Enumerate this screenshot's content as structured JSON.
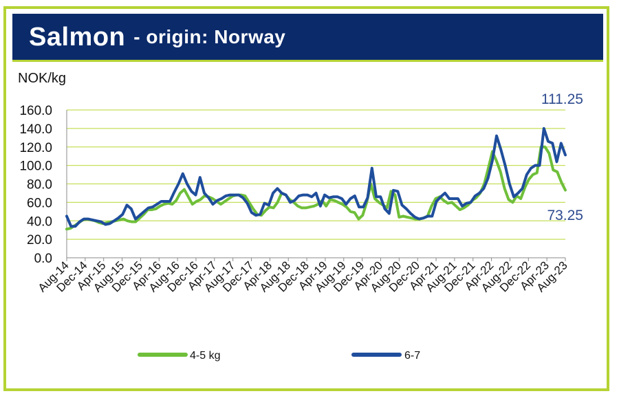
{
  "title": {
    "main": "Salmon",
    "sub": "- origin: Norway"
  },
  "colors": {
    "series_4_5": "#6fbf3a",
    "series_6_7": "#1f4e9c",
    "gridline": "#c5df5a",
    "frame": "#b5d334",
    "title_bg": "#0b2a6a"
  },
  "chart_data": {
    "type": "line",
    "ylabel": "NOK/kg",
    "ylim": [
      0,
      160
    ],
    "yticks": [
      "0.0",
      "20.0",
      "40.0",
      "60.0",
      "80.0",
      "100.0",
      "120.0",
      "140.0",
      "160.0"
    ],
    "xticks": [
      "Aug-14",
      "Dec-14",
      "Apr-15",
      "Aug-15",
      "Dec-15",
      "Apr-16",
      "Aug-16",
      "Dec-16",
      "Apr-17",
      "Aug-17",
      "Dec-17",
      "Apr-18",
      "Aug-18",
      "Dec-18",
      "Apr-19",
      "Aug-19",
      "Dec-19",
      "Apr-20",
      "Aug-20",
      "Dec-20",
      "Apr-21",
      "Aug-21",
      "Dec-21",
      "Apr-22",
      "Aug-22",
      "Dec-22",
      "Apr-23",
      "Aug-23"
    ],
    "grid": true,
    "legend_position": "bottom",
    "annotations": [
      "111.25",
      "73.25"
    ],
    "series": [
      {
        "name": "4-5 kg",
        "color": "#6fbf3a",
        "points": [
          [
            0,
            31
          ],
          [
            1,
            32
          ],
          [
            2,
            35
          ],
          [
            3,
            38
          ],
          [
            4,
            41
          ],
          [
            5,
            42
          ],
          [
            6,
            41
          ],
          [
            7,
            40
          ],
          [
            8,
            38
          ],
          [
            9,
            37
          ],
          [
            10,
            38
          ],
          [
            11,
            39
          ],
          [
            12,
            40
          ],
          [
            13,
            41
          ],
          [
            14,
            42
          ],
          [
            15,
            40
          ],
          [
            16,
            39
          ],
          [
            17,
            39
          ],
          [
            18,
            43
          ],
          [
            19,
            47
          ],
          [
            20,
            52
          ],
          [
            21,
            52
          ],
          [
            22,
            53
          ],
          [
            23,
            56
          ],
          [
            24,
            58
          ],
          [
            25,
            59
          ],
          [
            26,
            58
          ],
          [
            27,
            62
          ],
          [
            28,
            70
          ],
          [
            29,
            74
          ],
          [
            30,
            66
          ],
          [
            31,
            58
          ],
          [
            32,
            61
          ],
          [
            33,
            63
          ],
          [
            34,
            67
          ],
          [
            35,
            66
          ],
          [
            36,
            64
          ],
          [
            37,
            61
          ],
          [
            38,
            58
          ],
          [
            39,
            61
          ],
          [
            40,
            64
          ],
          [
            41,
            67
          ],
          [
            42,
            68
          ],
          [
            43,
            68
          ],
          [
            44,
            67
          ],
          [
            45,
            60
          ],
          [
            46,
            53
          ],
          [
            47,
            47
          ],
          [
            48,
            46
          ],
          [
            49,
            51
          ],
          [
            50,
            55
          ],
          [
            51,
            54
          ],
          [
            52,
            60
          ],
          [
            53,
            70
          ],
          [
            54,
            68
          ],
          [
            55,
            63
          ],
          [
            56,
            60
          ],
          [
            57,
            56
          ],
          [
            58,
            54
          ],
          [
            59,
            54
          ],
          [
            60,
            55
          ],
          [
            61,
            56
          ],
          [
            62,
            58
          ],
          [
            63,
            62
          ],
          [
            64,
            56
          ],
          [
            65,
            63
          ],
          [
            66,
            62
          ],
          [
            67,
            60
          ],
          [
            68,
            58
          ],
          [
            69,
            55
          ],
          [
            70,
            50
          ],
          [
            71,
            49
          ],
          [
            72,
            42
          ],
          [
            73,
            46
          ],
          [
            74,
            60
          ],
          [
            75,
            80
          ],
          [
            76,
            64
          ],
          [
            77,
            60
          ],
          [
            78,
            57
          ],
          [
            79,
            54
          ],
          [
            80,
            72
          ],
          [
            81,
            68
          ],
          [
            82,
            44
          ],
          [
            83,
            45
          ],
          [
            84,
            44
          ],
          [
            85,
            43
          ],
          [
            86,
            42
          ],
          [
            87,
            42
          ],
          [
            88,
            43
          ],
          [
            89,
            45
          ],
          [
            90,
            56
          ],
          [
            91,
            64
          ],
          [
            92,
            66
          ],
          [
            93,
            62
          ],
          [
            94,
            59
          ],
          [
            95,
            60
          ],
          [
            96,
            56
          ],
          [
            97,
            52
          ],
          [
            98,
            54
          ],
          [
            99,
            57
          ],
          [
            100,
            62
          ],
          [
            101,
            65
          ],
          [
            102,
            70
          ],
          [
            103,
            80
          ],
          [
            104,
            97
          ],
          [
            105,
            115
          ],
          [
            106,
            105
          ],
          [
            107,
            93
          ],
          [
            108,
            75
          ],
          [
            109,
            63
          ],
          [
            110,
            60
          ],
          [
            111,
            67
          ],
          [
            112,
            64
          ],
          [
            113,
            76
          ],
          [
            114,
            85
          ],
          [
            115,
            90
          ],
          [
            116,
            92
          ],
          [
            117,
            120
          ],
          [
            118,
            120
          ],
          [
            119,
            113
          ],
          [
            120,
            95
          ],
          [
            121,
            93
          ],
          [
            122,
            82
          ],
          [
            123,
            73.25
          ]
        ]
      },
      {
        "name": "6-7",
        "color": "#1f4e9c",
        "points": [
          [
            0,
            45
          ],
          [
            1,
            34
          ],
          [
            2,
            34
          ],
          [
            3,
            39
          ],
          [
            4,
            42
          ],
          [
            5,
            42
          ],
          [
            6,
            41
          ],
          [
            7,
            40
          ],
          [
            8,
            39
          ],
          [
            9,
            36
          ],
          [
            10,
            37
          ],
          [
            11,
            40
          ],
          [
            12,
            43
          ],
          [
            13,
            47
          ],
          [
            14,
            57
          ],
          [
            15,
            53
          ],
          [
            16,
            42
          ],
          [
            17,
            46
          ],
          [
            18,
            50
          ],
          [
            19,
            54
          ],
          [
            20,
            55
          ],
          [
            21,
            58
          ],
          [
            22,
            61
          ],
          [
            23,
            61
          ],
          [
            24,
            61
          ],
          [
            25,
            71
          ],
          [
            26,
            80
          ],
          [
            27,
            91
          ],
          [
            28,
            80
          ],
          [
            29,
            72
          ],
          [
            30,
            68
          ],
          [
            31,
            87
          ],
          [
            32,
            70
          ],
          [
            33,
            65
          ],
          [
            34,
            58
          ],
          [
            35,
            62
          ],
          [
            36,
            64
          ],
          [
            37,
            67
          ],
          [
            38,
            68
          ],
          [
            39,
            68
          ],
          [
            40,
            68
          ],
          [
            41,
            65
          ],
          [
            42,
            59
          ],
          [
            43,
            49
          ],
          [
            44,
            46
          ],
          [
            45,
            47
          ],
          [
            46,
            59
          ],
          [
            47,
            57
          ],
          [
            48,
            70
          ],
          [
            49,
            75
          ],
          [
            50,
            70
          ],
          [
            51,
            68
          ],
          [
            52,
            60
          ],
          [
            53,
            62
          ],
          [
            54,
            67
          ],
          [
            55,
            68
          ],
          [
            56,
            68
          ],
          [
            57,
            66
          ],
          [
            58,
            70
          ],
          [
            59,
            56
          ],
          [
            60,
            68
          ],
          [
            61,
            65
          ],
          [
            62,
            66
          ],
          [
            63,
            66
          ],
          [
            64,
            64
          ],
          [
            65,
            58
          ],
          [
            66,
            64
          ],
          [
            67,
            67
          ],
          [
            68,
            55
          ],
          [
            69,
            55
          ],
          [
            70,
            65
          ],
          [
            71,
            97
          ],
          [
            72,
            66
          ],
          [
            73,
            66
          ],
          [
            74,
            53
          ],
          [
            75,
            48
          ],
          [
            76,
            73
          ],
          [
            77,
            72
          ],
          [
            78,
            57
          ],
          [
            79,
            53
          ],
          [
            80,
            48
          ],
          [
            81,
            44
          ],
          [
            82,
            42
          ],
          [
            83,
            43
          ],
          [
            84,
            45
          ],
          [
            85,
            45
          ],
          [
            86,
            61
          ],
          [
            87,
            66
          ],
          [
            88,
            70
          ],
          [
            89,
            64
          ],
          [
            90,
            64
          ],
          [
            91,
            64
          ],
          [
            92,
            56
          ],
          [
            93,
            59
          ],
          [
            94,
            60
          ],
          [
            95,
            67
          ],
          [
            96,
            70
          ],
          [
            97,
            75
          ],
          [
            98,
            86
          ],
          [
            99,
            105
          ],
          [
            100,
            132
          ],
          [
            101,
            117
          ],
          [
            102,
            100
          ],
          [
            103,
            80
          ],
          [
            104,
            66
          ],
          [
            105,
            70
          ],
          [
            106,
            75
          ],
          [
            107,
            90
          ],
          [
            108,
            97
          ],
          [
            109,
            100
          ],
          [
            110,
            100
          ],
          [
            111,
            140
          ],
          [
            112,
            126
          ],
          [
            113,
            124
          ],
          [
            114,
            104
          ],
          [
            115,
            124
          ],
          [
            116,
            111.25
          ]
        ]
      }
    ]
  }
}
